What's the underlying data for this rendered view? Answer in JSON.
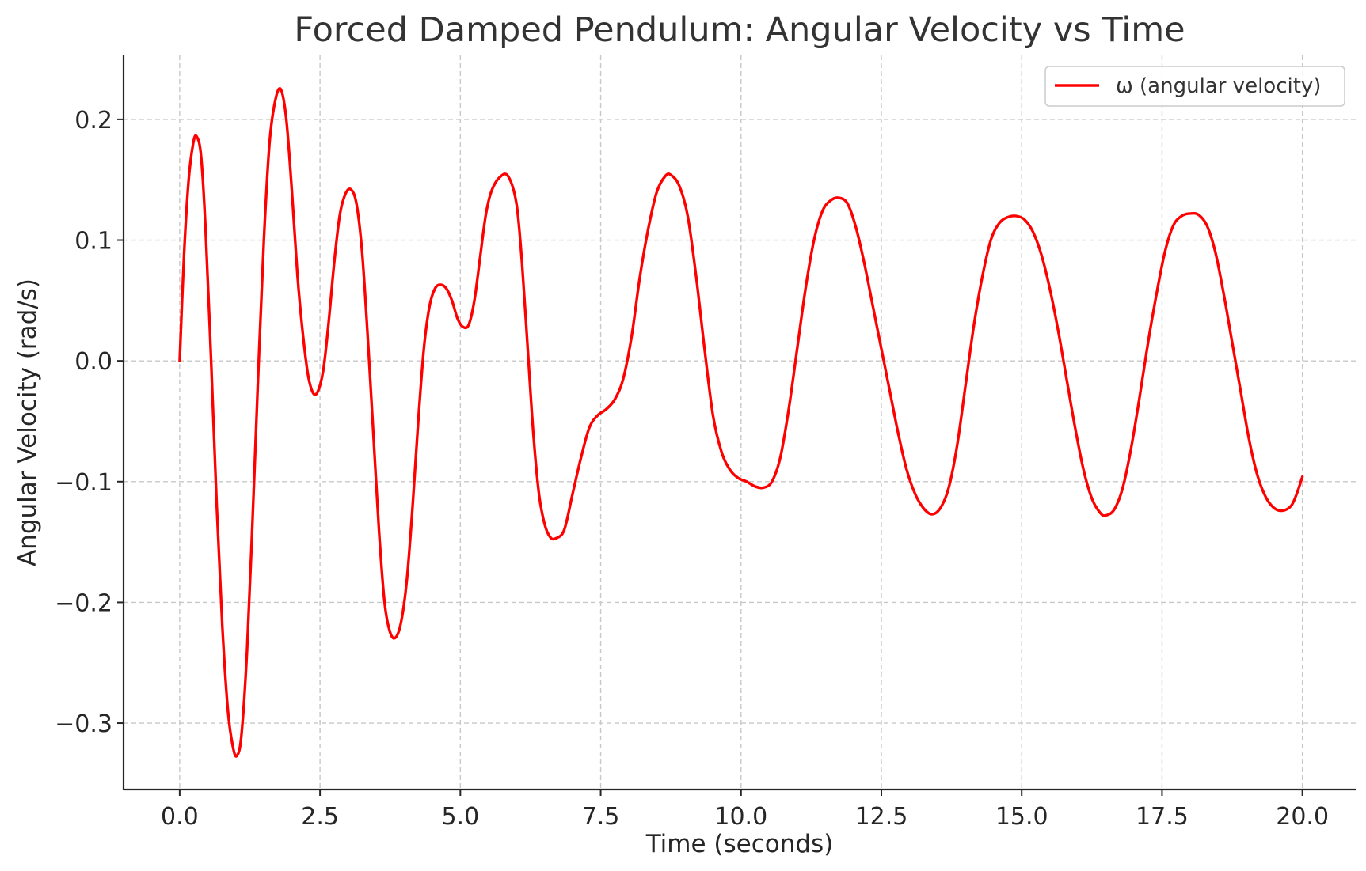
{
  "chart_data": {
    "type": "line",
    "title": "Forced Damped Pendulum: Angular Velocity vs Time",
    "xlabel": "Time (seconds)",
    "ylabel": "Angular Velocity (rad/s)",
    "xlim": [
      -1.0,
      20.95
    ],
    "ylim": [
      -0.355,
      0.253
    ],
    "x_ticks": [
      0,
      2.5,
      5,
      7.5,
      10,
      12.5,
      15,
      17.5,
      20
    ],
    "x_tick_labels": [
      "0.0",
      "2.5",
      "5.0",
      "7.5",
      "10.0",
      "12.5",
      "15.0",
      "17.5",
      "20.0"
    ],
    "y_ticks": [
      -0.3,
      -0.2,
      -0.1,
      0.0,
      0.1,
      0.2
    ],
    "y_tick_labels": [
      "−0.3",
      "−0.2",
      "−0.1",
      "0.0",
      "0.1",
      "0.2"
    ],
    "grid": true,
    "legend_position": "top-right",
    "series": [
      {
        "name": "ω (angular velocity)",
        "color": "#ff0000",
        "points": [
          [
            0.0,
            0.0
          ],
          [
            0.08,
            0.09
          ],
          [
            0.16,
            0.15
          ],
          [
            0.24,
            0.18
          ],
          [
            0.3,
            0.186
          ],
          [
            0.38,
            0.17
          ],
          [
            0.46,
            0.11
          ],
          [
            0.56,
            0.0
          ],
          [
            0.66,
            -0.12
          ],
          [
            0.76,
            -0.22
          ],
          [
            0.86,
            -0.29
          ],
          [
            0.95,
            -0.32
          ],
          [
            1.02,
            -0.327
          ],
          [
            1.1,
            -0.31
          ],
          [
            1.2,
            -0.24
          ],
          [
            1.3,
            -0.13
          ],
          [
            1.4,
            -0.01
          ],
          [
            1.5,
            0.1
          ],
          [
            1.6,
            0.18
          ],
          [
            1.7,
            0.215
          ],
          [
            1.8,
            0.225
          ],
          [
            1.9,
            0.2
          ],
          [
            2.0,
            0.14
          ],
          [
            2.1,
            0.07
          ],
          [
            2.2,
            0.02
          ],
          [
            2.3,
            -0.015
          ],
          [
            2.42,
            -0.028
          ],
          [
            2.55,
            -0.01
          ],
          [
            2.65,
            0.03
          ],
          [
            2.75,
            0.08
          ],
          [
            2.85,
            0.12
          ],
          [
            2.95,
            0.138
          ],
          [
            3.05,
            0.142
          ],
          [
            3.15,
            0.13
          ],
          [
            3.25,
            0.09
          ],
          [
            3.35,
            0.02
          ],
          [
            3.45,
            -0.06
          ],
          [
            3.55,
            -0.14
          ],
          [
            3.65,
            -0.2
          ],
          [
            3.75,
            -0.225
          ],
          [
            3.85,
            -0.229
          ],
          [
            3.95,
            -0.215
          ],
          [
            4.05,
            -0.18
          ],
          [
            4.15,
            -0.12
          ],
          [
            4.25,
            -0.05
          ],
          [
            4.35,
            0.01
          ],
          [
            4.45,
            0.045
          ],
          [
            4.55,
            0.06
          ],
          [
            4.65,
            0.063
          ],
          [
            4.75,
            0.06
          ],
          [
            4.85,
            0.05
          ],
          [
            4.95,
            0.035
          ],
          [
            5.05,
            0.028
          ],
          [
            5.15,
            0.03
          ],
          [
            5.25,
            0.05
          ],
          [
            5.35,
            0.085
          ],
          [
            5.45,
            0.12
          ],
          [
            5.55,
            0.14
          ],
          [
            5.7,
            0.152
          ],
          [
            5.85,
            0.153
          ],
          [
            6.0,
            0.13
          ],
          [
            6.1,
            0.08
          ],
          [
            6.2,
            0.01
          ],
          [
            6.3,
            -0.06
          ],
          [
            6.4,
            -0.11
          ],
          [
            6.5,
            -0.135
          ],
          [
            6.6,
            -0.146
          ],
          [
            6.7,
            -0.147
          ],
          [
            6.85,
            -0.14
          ],
          [
            7.0,
            -0.11
          ],
          [
            7.15,
            -0.08
          ],
          [
            7.3,
            -0.055
          ],
          [
            7.45,
            -0.045
          ],
          [
            7.6,
            -0.04
          ],
          [
            7.75,
            -0.032
          ],
          [
            7.9,
            -0.015
          ],
          [
            8.05,
            0.02
          ],
          [
            8.2,
            0.07
          ],
          [
            8.35,
            0.11
          ],
          [
            8.5,
            0.14
          ],
          [
            8.65,
            0.153
          ],
          [
            8.75,
            0.154
          ],
          [
            8.9,
            0.145
          ],
          [
            9.05,
            0.12
          ],
          [
            9.2,
            0.07
          ],
          [
            9.35,
            0.01
          ],
          [
            9.5,
            -0.045
          ],
          [
            9.65,
            -0.075
          ],
          [
            9.8,
            -0.09
          ],
          [
            9.95,
            -0.097
          ],
          [
            10.1,
            -0.1
          ],
          [
            10.25,
            -0.104
          ],
          [
            10.4,
            -0.105
          ],
          [
            10.55,
            -0.1
          ],
          [
            10.7,
            -0.08
          ],
          [
            10.85,
            -0.04
          ],
          [
            11.0,
            0.01
          ],
          [
            11.15,
            0.06
          ],
          [
            11.3,
            0.1
          ],
          [
            11.45,
            0.124
          ],
          [
            11.6,
            0.133
          ],
          [
            11.75,
            0.135
          ],
          [
            11.9,
            0.13
          ],
          [
            12.05,
            0.11
          ],
          [
            12.2,
            0.08
          ],
          [
            12.35,
            0.045
          ],
          [
            12.5,
            0.01
          ],
          [
            12.65,
            -0.025
          ],
          [
            12.8,
            -0.06
          ],
          [
            12.95,
            -0.09
          ],
          [
            13.1,
            -0.11
          ],
          [
            13.25,
            -0.122
          ],
          [
            13.4,
            -0.127
          ],
          [
            13.55,
            -0.122
          ],
          [
            13.7,
            -0.105
          ],
          [
            13.85,
            -0.07
          ],
          [
            14.0,
            -0.02
          ],
          [
            14.15,
            0.03
          ],
          [
            14.3,
            0.07
          ],
          [
            14.45,
            0.1
          ],
          [
            14.6,
            0.114
          ],
          [
            14.75,
            0.119
          ],
          [
            14.9,
            0.12
          ],
          [
            15.05,
            0.117
          ],
          [
            15.2,
            0.107
          ],
          [
            15.35,
            0.088
          ],
          [
            15.5,
            0.06
          ],
          [
            15.65,
            0.025
          ],
          [
            15.8,
            -0.015
          ],
          [
            15.95,
            -0.055
          ],
          [
            16.1,
            -0.09
          ],
          [
            16.25,
            -0.114
          ],
          [
            16.4,
            -0.126
          ],
          [
            16.5,
            -0.128
          ],
          [
            16.65,
            -0.123
          ],
          [
            16.8,
            -0.105
          ],
          [
            16.95,
            -0.072
          ],
          [
            17.1,
            -0.03
          ],
          [
            17.25,
            0.015
          ],
          [
            17.4,
            0.055
          ],
          [
            17.55,
            0.09
          ],
          [
            17.7,
            0.112
          ],
          [
            17.85,
            0.12
          ],
          [
            18.0,
            0.122
          ],
          [
            18.15,
            0.121
          ],
          [
            18.3,
            0.112
          ],
          [
            18.45,
            0.09
          ],
          [
            18.6,
            0.055
          ],
          [
            18.75,
            0.015
          ],
          [
            18.9,
            -0.025
          ],
          [
            19.05,
            -0.065
          ],
          [
            19.2,
            -0.095
          ],
          [
            19.35,
            -0.113
          ],
          [
            19.5,
            -0.122
          ],
          [
            19.65,
            -0.124
          ],
          [
            19.8,
            -0.12
          ],
          [
            19.9,
            -0.11
          ],
          [
            20.0,
            -0.096
          ]
        ]
      }
    ]
  }
}
